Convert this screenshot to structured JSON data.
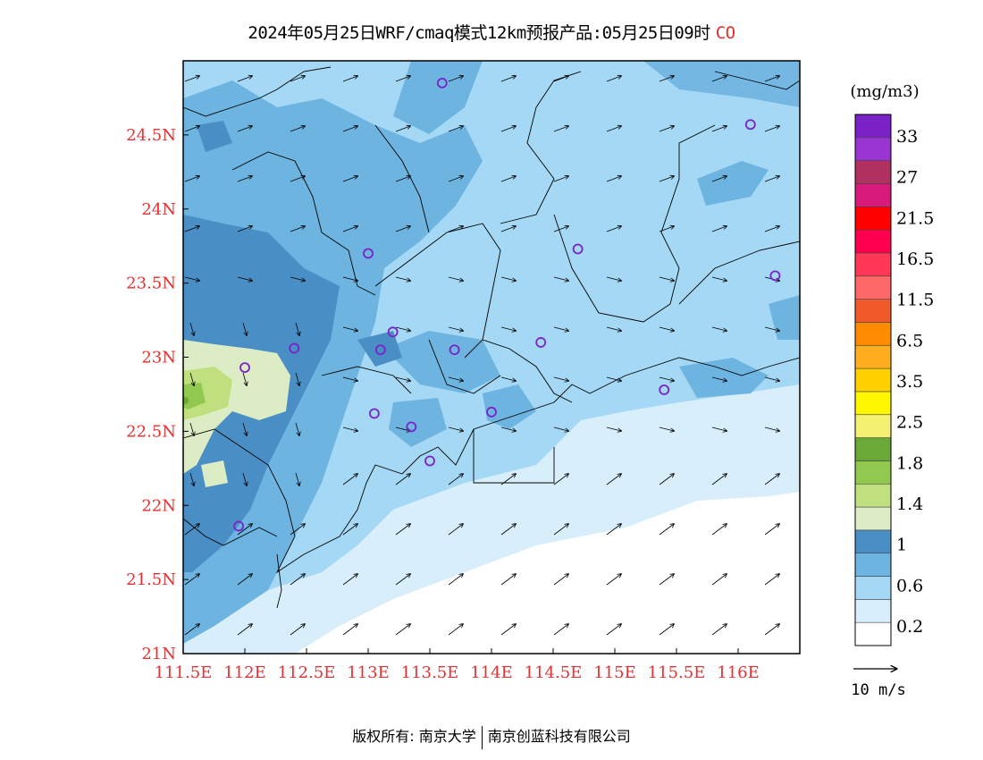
{
  "title": {
    "text": "2024年05月25日WRF/cmaq模式12km预报产品:05月25日09时",
    "species": "CO"
  },
  "map": {
    "lon_range": [
      111.5,
      116.5
    ],
    "lat_range": [
      21,
      25
    ],
    "x_ticks": [
      "111.5E",
      "112E",
      "112.5E",
      "113E",
      "113.5E",
      "114E",
      "114.5E",
      "115E",
      "115.5E",
      "116E"
    ],
    "y_ticks": [
      "21N",
      "21.5N",
      "22N",
      "22.5N",
      "23N",
      "23.5N",
      "24N",
      "24.5N"
    ],
    "tick_color": "#e83030",
    "stations": [
      [
        113.6,
        24.85
      ],
      [
        116.1,
        24.57
      ],
      [
        113.0,
        23.7
      ],
      [
        114.7,
        23.73
      ],
      [
        116.3,
        23.55
      ],
      [
        112.4,
        23.06
      ],
      [
        113.2,
        23.17
      ],
      [
        113.1,
        23.05
      ],
      [
        113.7,
        23.05
      ],
      [
        114.4,
        23.1
      ],
      [
        112.0,
        22.93
      ],
      [
        113.05,
        22.62
      ],
      [
        113.35,
        22.53
      ],
      [
        114.0,
        22.63
      ],
      [
        115.4,
        22.78
      ],
      [
        113.5,
        22.3
      ],
      [
        111.95,
        21.86
      ]
    ],
    "station_color": "#7a22c8"
  },
  "legend": {
    "unit": "(mg/m3)",
    "labels": [
      "33",
      "27",
      "21.5",
      "16.5",
      "11.5",
      "6.5",
      "3.5",
      "2.5",
      "1.8",
      "1.4",
      "1",
      "0.6",
      "0.2"
    ],
    "colors": [
      "#ffffff",
      "#d8eefb",
      "#a4d8f4",
      "#6eb4e0",
      "#4a8ec6",
      "#dcecc4",
      "#c0e080",
      "#90c850",
      "#6aa838",
      "#f4f070",
      "#fff600",
      "#ffd000",
      "#ffae20",
      "#ff8c00",
      "#f05a28",
      "#ff6868",
      "#ff3858",
      "#ff0050",
      "#ff0000",
      "#d81a7a",
      "#b03060",
      "#9a34d0",
      "#7a22c8"
    ]
  },
  "vector_key": {
    "label": "10 m/s"
  },
  "footer": {
    "left": "版权所有: 南京大学",
    "right": "南京创蓝科技有限公司"
  }
}
